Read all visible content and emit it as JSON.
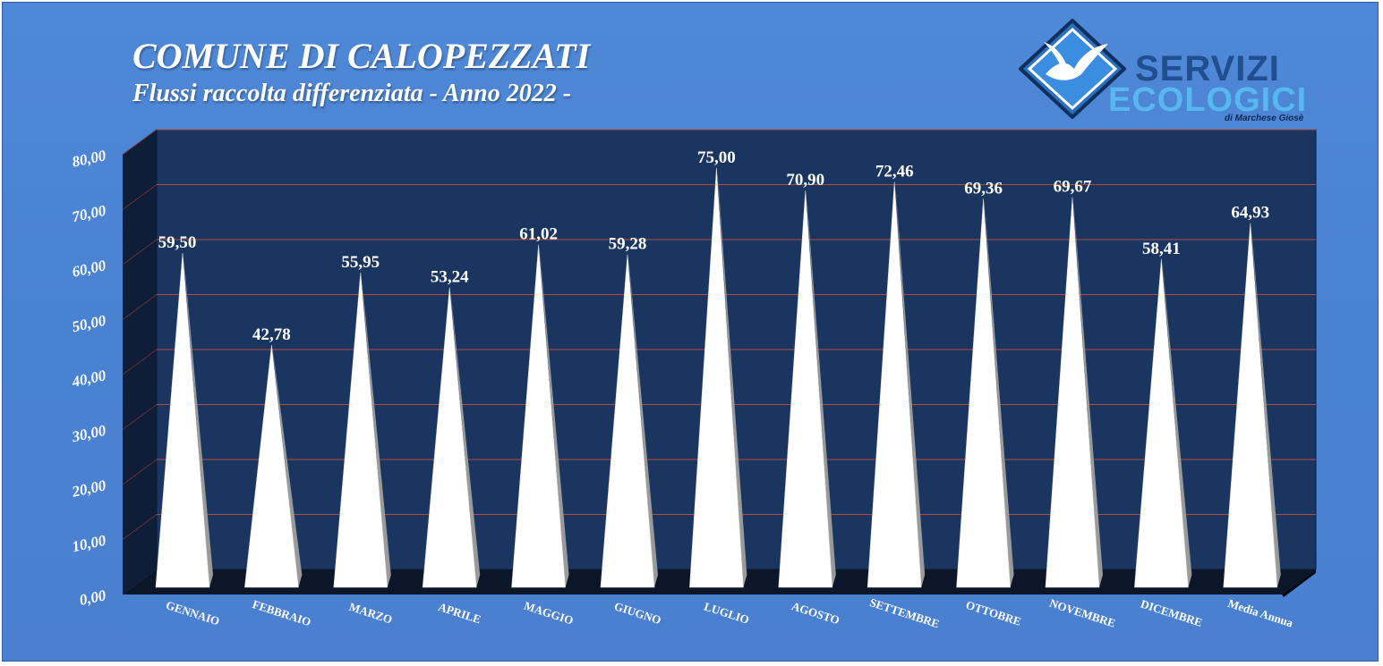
{
  "header": {
    "title": "COMUNE DI CALOPEZZATI",
    "subtitle": "Flussi raccolta differenziata - Anno 2022 -"
  },
  "logo": {
    "line1": "SERVIZI",
    "line2": "ECOLOGICI",
    "line3": "di Marchese Giosè",
    "icon": "seagull-diamond-icon"
  },
  "colors": {
    "background": "#4a82d2",
    "plot_back": "#1a3560",
    "gridline": "#b84a3a",
    "cone": "#ffffff",
    "cone_shadow": "#9a9a9a",
    "text": "#ffffff"
  },
  "chart_data": {
    "type": "bar",
    "style": "3d-cone",
    "title": "COMUNE DI CALOPEZZATI",
    "subtitle": "Flussi raccolta differenziata - Anno 2022 -",
    "categories": [
      "GENNAIO",
      "FEBBRAIO",
      "MARZO",
      "APRILE",
      "MAGGIO",
      "GIUGNO",
      "LUGLIO",
      "AGOSTO",
      "SETTEMBRE",
      "OTTOBRE",
      "NOVEMBRE",
      "DICEMBRE",
      "Media Annua"
    ],
    "values": [
      59.5,
      42.78,
      55.95,
      53.24,
      61.02,
      59.28,
      75.0,
      70.9,
      72.46,
      69.36,
      69.67,
      58.41,
      64.93
    ],
    "value_labels": [
      "59,50",
      "42,78",
      "55,95",
      "53,24",
      "61,02",
      "59,28",
      "75,00",
      "70,90",
      "72,46",
      "69,36",
      "69,67",
      "58,41",
      "64,93"
    ],
    "y_ticks": [
      0,
      10,
      20,
      30,
      40,
      50,
      60,
      70,
      80
    ],
    "y_tick_labels": [
      "0,00",
      "10,00",
      "20,00",
      "30,00",
      "40,00",
      "50,00",
      "60,00",
      "70,00",
      "80,00"
    ],
    "ylim": [
      0,
      80
    ],
    "xlabel": "",
    "ylabel": "",
    "grid": true,
    "legend": "none"
  }
}
